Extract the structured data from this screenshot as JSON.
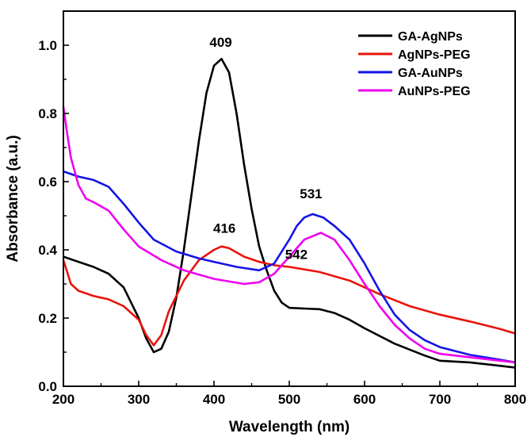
{
  "chart_data": {
    "type": "line",
    "title": "",
    "xlabel": "Wavelength (nm)",
    "ylabel": "Absorbance (a.u.)",
    "xlim": [
      200,
      800
    ],
    "ylim": [
      0.0,
      1.1
    ],
    "xticks": [
      200,
      300,
      400,
      500,
      600,
      700,
      800
    ],
    "xtick_labels": [
      "200",
      "300",
      "400",
      "500",
      "600",
      "700",
      "800"
    ],
    "yticks": [
      0.0,
      0.2,
      0.4,
      0.6,
      0.8,
      1.0
    ],
    "ytick_labels": [
      "0.0",
      "0.2",
      "0.4",
      "0.6",
      "0.8",
      "1.0"
    ],
    "grid": false,
    "legend_position": "top-right",
    "series": [
      {
        "name": "GA-AgNPs",
        "color": "#000000",
        "x": [
          200,
          220,
          240,
          260,
          280,
          300,
          310,
          320,
          330,
          340,
          350,
          360,
          370,
          380,
          390,
          400,
          410,
          420,
          430,
          440,
          450,
          460,
          470,
          480,
          490,
          500,
          520,
          540,
          560,
          580,
          600,
          640,
          680,
          700,
          740,
          780,
          800
        ],
        "y": [
          0.38,
          0.365,
          0.35,
          0.33,
          0.29,
          0.2,
          0.14,
          0.1,
          0.11,
          0.16,
          0.26,
          0.4,
          0.56,
          0.72,
          0.86,
          0.94,
          0.96,
          0.92,
          0.8,
          0.65,
          0.52,
          0.41,
          0.34,
          0.28,
          0.245,
          0.23,
          0.228,
          0.226,
          0.215,
          0.195,
          0.17,
          0.125,
          0.09,
          0.075,
          0.07,
          0.06,
          0.055
        ]
      },
      {
        "name": "AgNPs-PEG",
        "color": "#e8140c",
        "x": [
          200,
          210,
          220,
          240,
          260,
          280,
          300,
          310,
          320,
          330,
          340,
          360,
          380,
          400,
          410,
          420,
          440,
          460,
          480,
          500,
          540,
          580,
          620,
          660,
          700,
          740,
          780,
          800
        ],
        "y": [
          0.37,
          0.3,
          0.28,
          0.265,
          0.255,
          0.235,
          0.195,
          0.15,
          0.12,
          0.15,
          0.22,
          0.31,
          0.37,
          0.4,
          0.41,
          0.405,
          0.38,
          0.365,
          0.355,
          0.35,
          0.335,
          0.31,
          0.27,
          0.235,
          0.21,
          0.19,
          0.168,
          0.155
        ]
      },
      {
        "name": "GA-AuNPs",
        "color": "#1414e6",
        "x": [
          200,
          220,
          240,
          260,
          280,
          300,
          320,
          350,
          380,
          400,
          430,
          460,
          480,
          500,
          510,
          520,
          531,
          545,
          560,
          580,
          600,
          620,
          640,
          660,
          680,
          700,
          740,
          780,
          800
        ],
        "y": [
          0.63,
          0.615,
          0.605,
          0.585,
          0.535,
          0.48,
          0.43,
          0.395,
          0.375,
          0.365,
          0.35,
          0.34,
          0.36,
          0.43,
          0.47,
          0.495,
          0.505,
          0.495,
          0.47,
          0.43,
          0.36,
          0.28,
          0.21,
          0.165,
          0.135,
          0.115,
          0.092,
          0.078,
          0.07
        ]
      },
      {
        "name": "AuNPs-PEG",
        "color": "#ee00ee",
        "x": [
          200,
          205,
          210,
          220,
          230,
          240,
          260,
          280,
          300,
          330,
          360,
          400,
          440,
          460,
          480,
          500,
          520,
          542,
          560,
          580,
          600,
          620,
          640,
          660,
          680,
          700,
          740,
          780,
          800
        ],
        "y": [
          0.82,
          0.74,
          0.67,
          0.59,
          0.55,
          0.54,
          0.515,
          0.46,
          0.41,
          0.37,
          0.34,
          0.315,
          0.3,
          0.305,
          0.33,
          0.38,
          0.43,
          0.45,
          0.43,
          0.37,
          0.3,
          0.235,
          0.18,
          0.14,
          0.11,
          0.095,
          0.085,
          0.075,
          0.07
        ]
      }
    ],
    "annotations": [
      {
        "text": "409",
        "x": 409,
        "y": 0.96
      },
      {
        "text": "416",
        "x": 416,
        "y": 0.41
      },
      {
        "text": "531",
        "x": 531,
        "y": 0.505
      },
      {
        "text": "542",
        "x": 542,
        "y": 0.45
      }
    ]
  }
}
